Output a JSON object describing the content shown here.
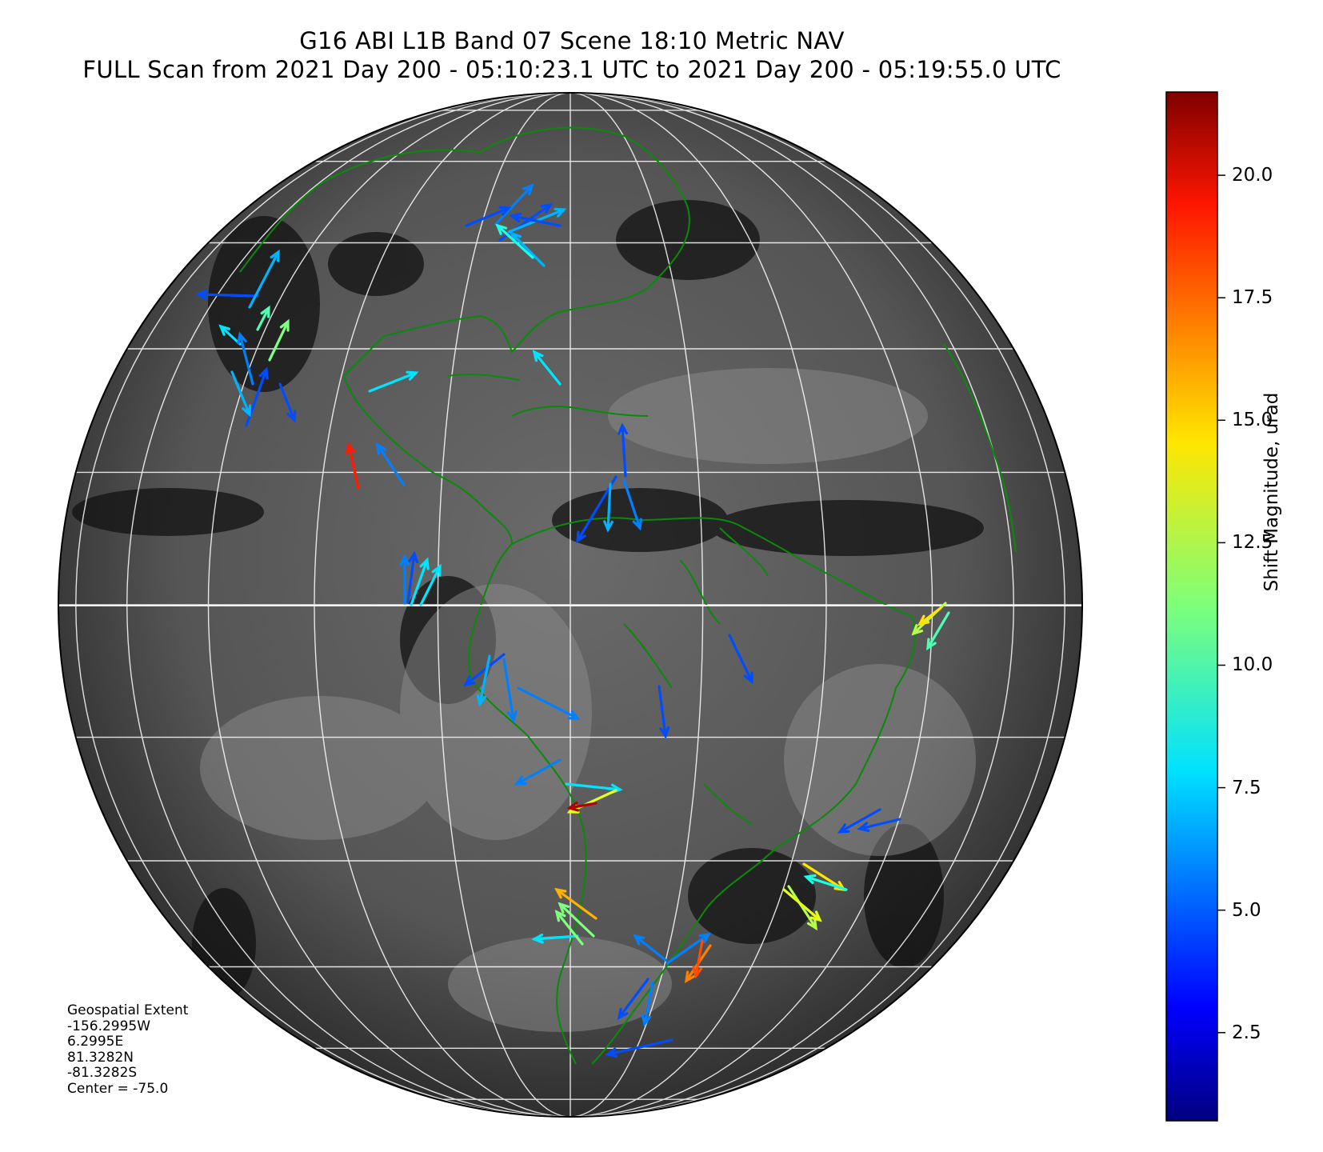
{
  "title": {
    "line1": "G16 ABI L1B Band 07 Scene 18:10 Metric NAV",
    "line2": "FULL Scan from 2021 Day 200 - 05:10:23.1 UTC to 2021 Day 200 - 05:19:55.0 UTC"
  },
  "extent": {
    "heading": "Geospatial Extent",
    "west": "-156.2995W",
    "east": "6.2995E",
    "north": "81.3282N",
    "south": "-81.3282S",
    "center": "Center = -75.0"
  },
  "colorbar": {
    "label": "Shift Magnitude, urad",
    "min": 0.7,
    "max": 21.7,
    "ticks": [
      "2.5",
      "5.0",
      "7.5",
      "10.0",
      "12.5",
      "15.0",
      "17.5",
      "20.0"
    ],
    "colormap": "jet"
  },
  "colors": {
    "coastline": "#0a8a0a",
    "graticule": "#ffffff",
    "globe_background": "#5a5a5a"
  }
}
